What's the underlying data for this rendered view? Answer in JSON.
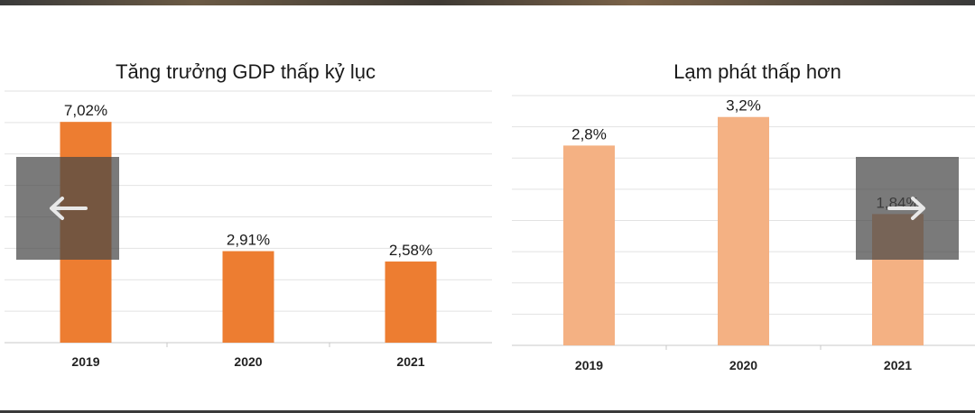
{
  "charts": [
    {
      "title": "Tăng trưởng GDP thấp kỷ lục",
      "color": "#ED7D31"
    },
    {
      "title": "Lạm phát thấp hơn",
      "color": "#F4B183"
    }
  ],
  "chart_data": [
    {
      "type": "bar",
      "title": "Tăng trưởng GDP thấp kỷ lục",
      "categories": [
        "2019",
        "2020",
        "2021"
      ],
      "values": [
        7.02,
        2.91,
        2.58
      ],
      "labels": [
        "7,02%",
        "2,91%",
        "2,58%"
      ],
      "ylim": [
        0,
        8
      ],
      "grid": true,
      "color": "#ED7D31"
    },
    {
      "type": "bar",
      "title": "Lạm phát thấp hơn",
      "categories": [
        "2019",
        "2020",
        "2021"
      ],
      "values": [
        2.8,
        3.2,
        1.84
      ],
      "labels": [
        "2,8%",
        "3,2%",
        "1,84%"
      ],
      "ylim": [
        0,
        3.5
      ],
      "grid": true,
      "color": "#F4B183"
    }
  ],
  "nav": {
    "prev_icon": "arrow-left-icon",
    "next_icon": "arrow-right-icon"
  }
}
